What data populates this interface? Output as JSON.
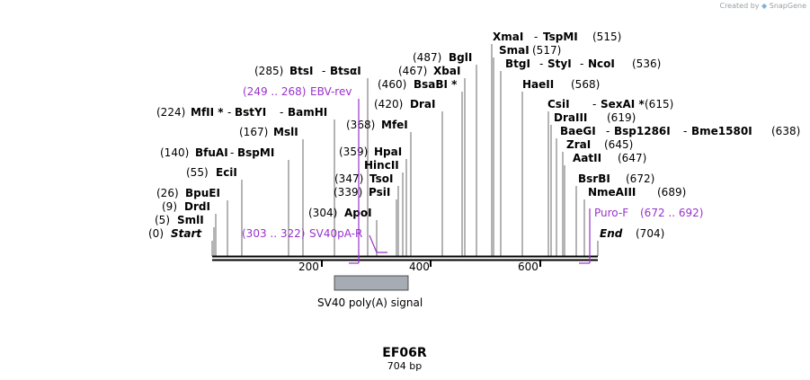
{
  "credit": {
    "prefix": "Created by",
    "brand": "SnapGene"
  },
  "sequence": {
    "name": "EF06R",
    "length_label": "704 bp",
    "length_bp": 704
  },
  "axis_ticks": [
    "200",
    "400",
    "600"
  ],
  "features": [
    {
      "name": "SV40 poly(A) signal",
      "color": "#a6acb3"
    }
  ],
  "primers": [
    {
      "label": "EBV-rev",
      "range": "(249 .. 268)"
    },
    {
      "label": "SV40pA-R",
      "range": "(303 .. 322)"
    },
    {
      "label": "Puro-F",
      "range": "(672 .. 692)"
    }
  ],
  "sites": [
    {
      "pos": "(0)",
      "names": [
        "Start"
      ]
    },
    {
      "pos": "(5)",
      "names": [
        "SmlI"
      ]
    },
    {
      "pos": "(9)",
      "names": [
        "DrdI"
      ]
    },
    {
      "pos": "(26)",
      "names": [
        "BpuEI"
      ]
    },
    {
      "pos": "(55)",
      "names": [
        "EciI"
      ]
    },
    {
      "pos": "(140)",
      "names": [
        "BfuAI",
        "BspMI"
      ]
    },
    {
      "pos": "(224)",
      "names": [
        "MfII *",
        "BstYI",
        "BamHI"
      ]
    },
    {
      "pos": "(167)",
      "names": [
        "MslI"
      ]
    },
    {
      "pos": "(285)",
      "names": [
        "BtsI",
        "BtsαI"
      ]
    },
    {
      "pos": "(304)",
      "names": [
        "ApoI"
      ]
    },
    {
      "pos": "(339)",
      "names": [
        "PsiI"
      ]
    },
    {
      "pos": "(347)",
      "names": [
        "TsoI"
      ]
    },
    {
      "pos": "",
      "names": [
        "HincII"
      ]
    },
    {
      "pos": "(359)",
      "names": [
        "HpaI"
      ]
    },
    {
      "pos": "(368)",
      "names": [
        "MfeI"
      ]
    },
    {
      "pos": "(420)",
      "names": [
        "DraI"
      ]
    },
    {
      "pos": "(460)",
      "names": [
        "BsaBI *"
      ]
    },
    {
      "pos": "(467)",
      "names": [
        "XbaI"
      ]
    },
    {
      "pos": "(487)",
      "names": [
        "BglI"
      ]
    },
    {
      "pos": "(515)",
      "names": [
        "XmaI",
        "TspMI"
      ]
    },
    {
      "pos": "(517)",
      "names": [
        "SmaI"
      ]
    },
    {
      "pos": "(536)",
      "names": [
        "BtgI",
        "StyI",
        "NcoI"
      ]
    },
    {
      "pos": "(568)",
      "names": [
        "HaeII"
      ]
    },
    {
      "pos": "(615)",
      "names": [
        "CsiI",
        "SexAI *"
      ]
    },
    {
      "pos": "(619)",
      "names": [
        "DraIII"
      ]
    },
    {
      "pos": "(638)",
      "names": [
        "BaeGI",
        "Bsp1286I",
        "Bme1580I"
      ]
    },
    {
      "pos": "(645)",
      "names": [
        "ZraI"
      ]
    },
    {
      "pos": "(647)",
      "names": [
        "AatII"
      ]
    },
    {
      "pos": "(672)",
      "names": [
        "BsrBI"
      ]
    },
    {
      "pos": "(689)",
      "names": [
        "NmeAIII"
      ]
    },
    {
      "pos": "(704)",
      "names": [
        "End"
      ]
    }
  ]
}
